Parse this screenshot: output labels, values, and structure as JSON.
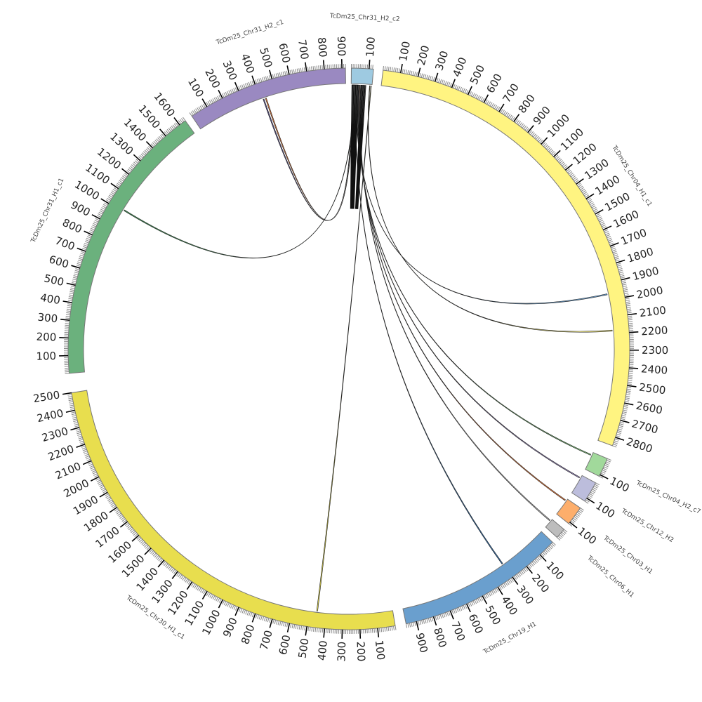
{
  "diagram": {
    "type": "circos",
    "units_per_tick_label": 100,
    "chromosomes": [
      {
        "name": "TcDm25_Chr31_H2_c2",
        "length": 125,
        "color": "#9ecae1"
      },
      {
        "name": "TcDm25_Chr04_H1_c1",
        "length": 2850,
        "color": "#fff481"
      },
      {
        "name": "TcDm25_Chr04_H2_c7",
        "length": 110,
        "color": "#a1d99b"
      },
      {
        "name": "TcDm25_Chr12_H2",
        "length": 120,
        "color": "#bcbddc"
      },
      {
        "name": "TcDm25_Chr03_H1",
        "length": 110,
        "color": "#fdae6b"
      },
      {
        "name": "TcDm25_Chr06_H1",
        "length": 60,
        "color": "#bdbdbd"
      },
      {
        "name": "TcDm25_Chr19_H1",
        "length": 960,
        "color": "#6a9fce"
      },
      {
        "name": "TcDm25_Chr30_H1_c1",
        "length": 2500,
        "color": "#e8de4e"
      },
      {
        "name": "TcDm25_Chr31_H1_c1",
        "length": 1640,
        "color": "#6bb17d"
      },
      {
        "name": "TcDm25_Chr31_H2_c1",
        "length": 920,
        "color": "#9a89c1"
      }
    ],
    "links": [
      {
        "source": "TcDm25_Chr31_H2_c2",
        "source_pos": 8,
        "target": "TcDm25_Chr31_H2_c1",
        "target_pos": 415,
        "color": "#5a4f8a"
      },
      {
        "source": "TcDm25_Chr31_H2_c2",
        "source_pos": 14,
        "target": "TcDm25_Chr31_H2_c1",
        "target_pos": 430,
        "color": "#e8793a"
      },
      {
        "source": "TcDm25_Chr31_H2_c2",
        "source_pos": 20,
        "target": "TcDm25_Chr31_H1_c1",
        "target_pos": 1010,
        "color": "#3f8f55"
      },
      {
        "source": "TcDm25_Chr31_H2_c2",
        "source_pos": 30,
        "target": "TcDm25_Chr04_H1_c1",
        "target_pos": 1960,
        "color": "#6a9fce"
      },
      {
        "source": "TcDm25_Chr31_H2_c2",
        "source_pos": 110,
        "target": "TcDm25_Chr04_H1_c1",
        "target_pos": 2180,
        "color": "#fff481"
      },
      {
        "source": "TcDm25_Chr31_H2_c2",
        "source_pos": 38,
        "target": "TcDm25_Chr04_H2_c7",
        "target_pos": 15,
        "color": "#7cc47a"
      },
      {
        "source": "TcDm25_Chr31_H2_c2",
        "source_pos": 44,
        "target": "TcDm25_Chr12_H2",
        "target_pos": 15,
        "color": "#9a89c1"
      },
      {
        "source": "TcDm25_Chr31_H2_c2",
        "source_pos": 50,
        "target": "TcDm25_Chr03_H1",
        "target_pos": 10,
        "color": "#e8793a"
      },
      {
        "source": "TcDm25_Chr31_H2_c2",
        "source_pos": 56,
        "target": "TcDm25_Chr06_H1",
        "target_pos": 10,
        "color": "#bdbdbd"
      },
      {
        "source": "TcDm25_Chr31_H2_c2",
        "source_pos": 25,
        "target": "TcDm25_Chr19_H1",
        "target_pos": 300,
        "color": "#2f6fb0"
      },
      {
        "source": "TcDm25_Chr31_H2_c2",
        "source_pos": 118,
        "target": "TcDm25_Chr30_H1_c1",
        "target_pos": 450,
        "color": "#e8de4e"
      }
    ]
  }
}
